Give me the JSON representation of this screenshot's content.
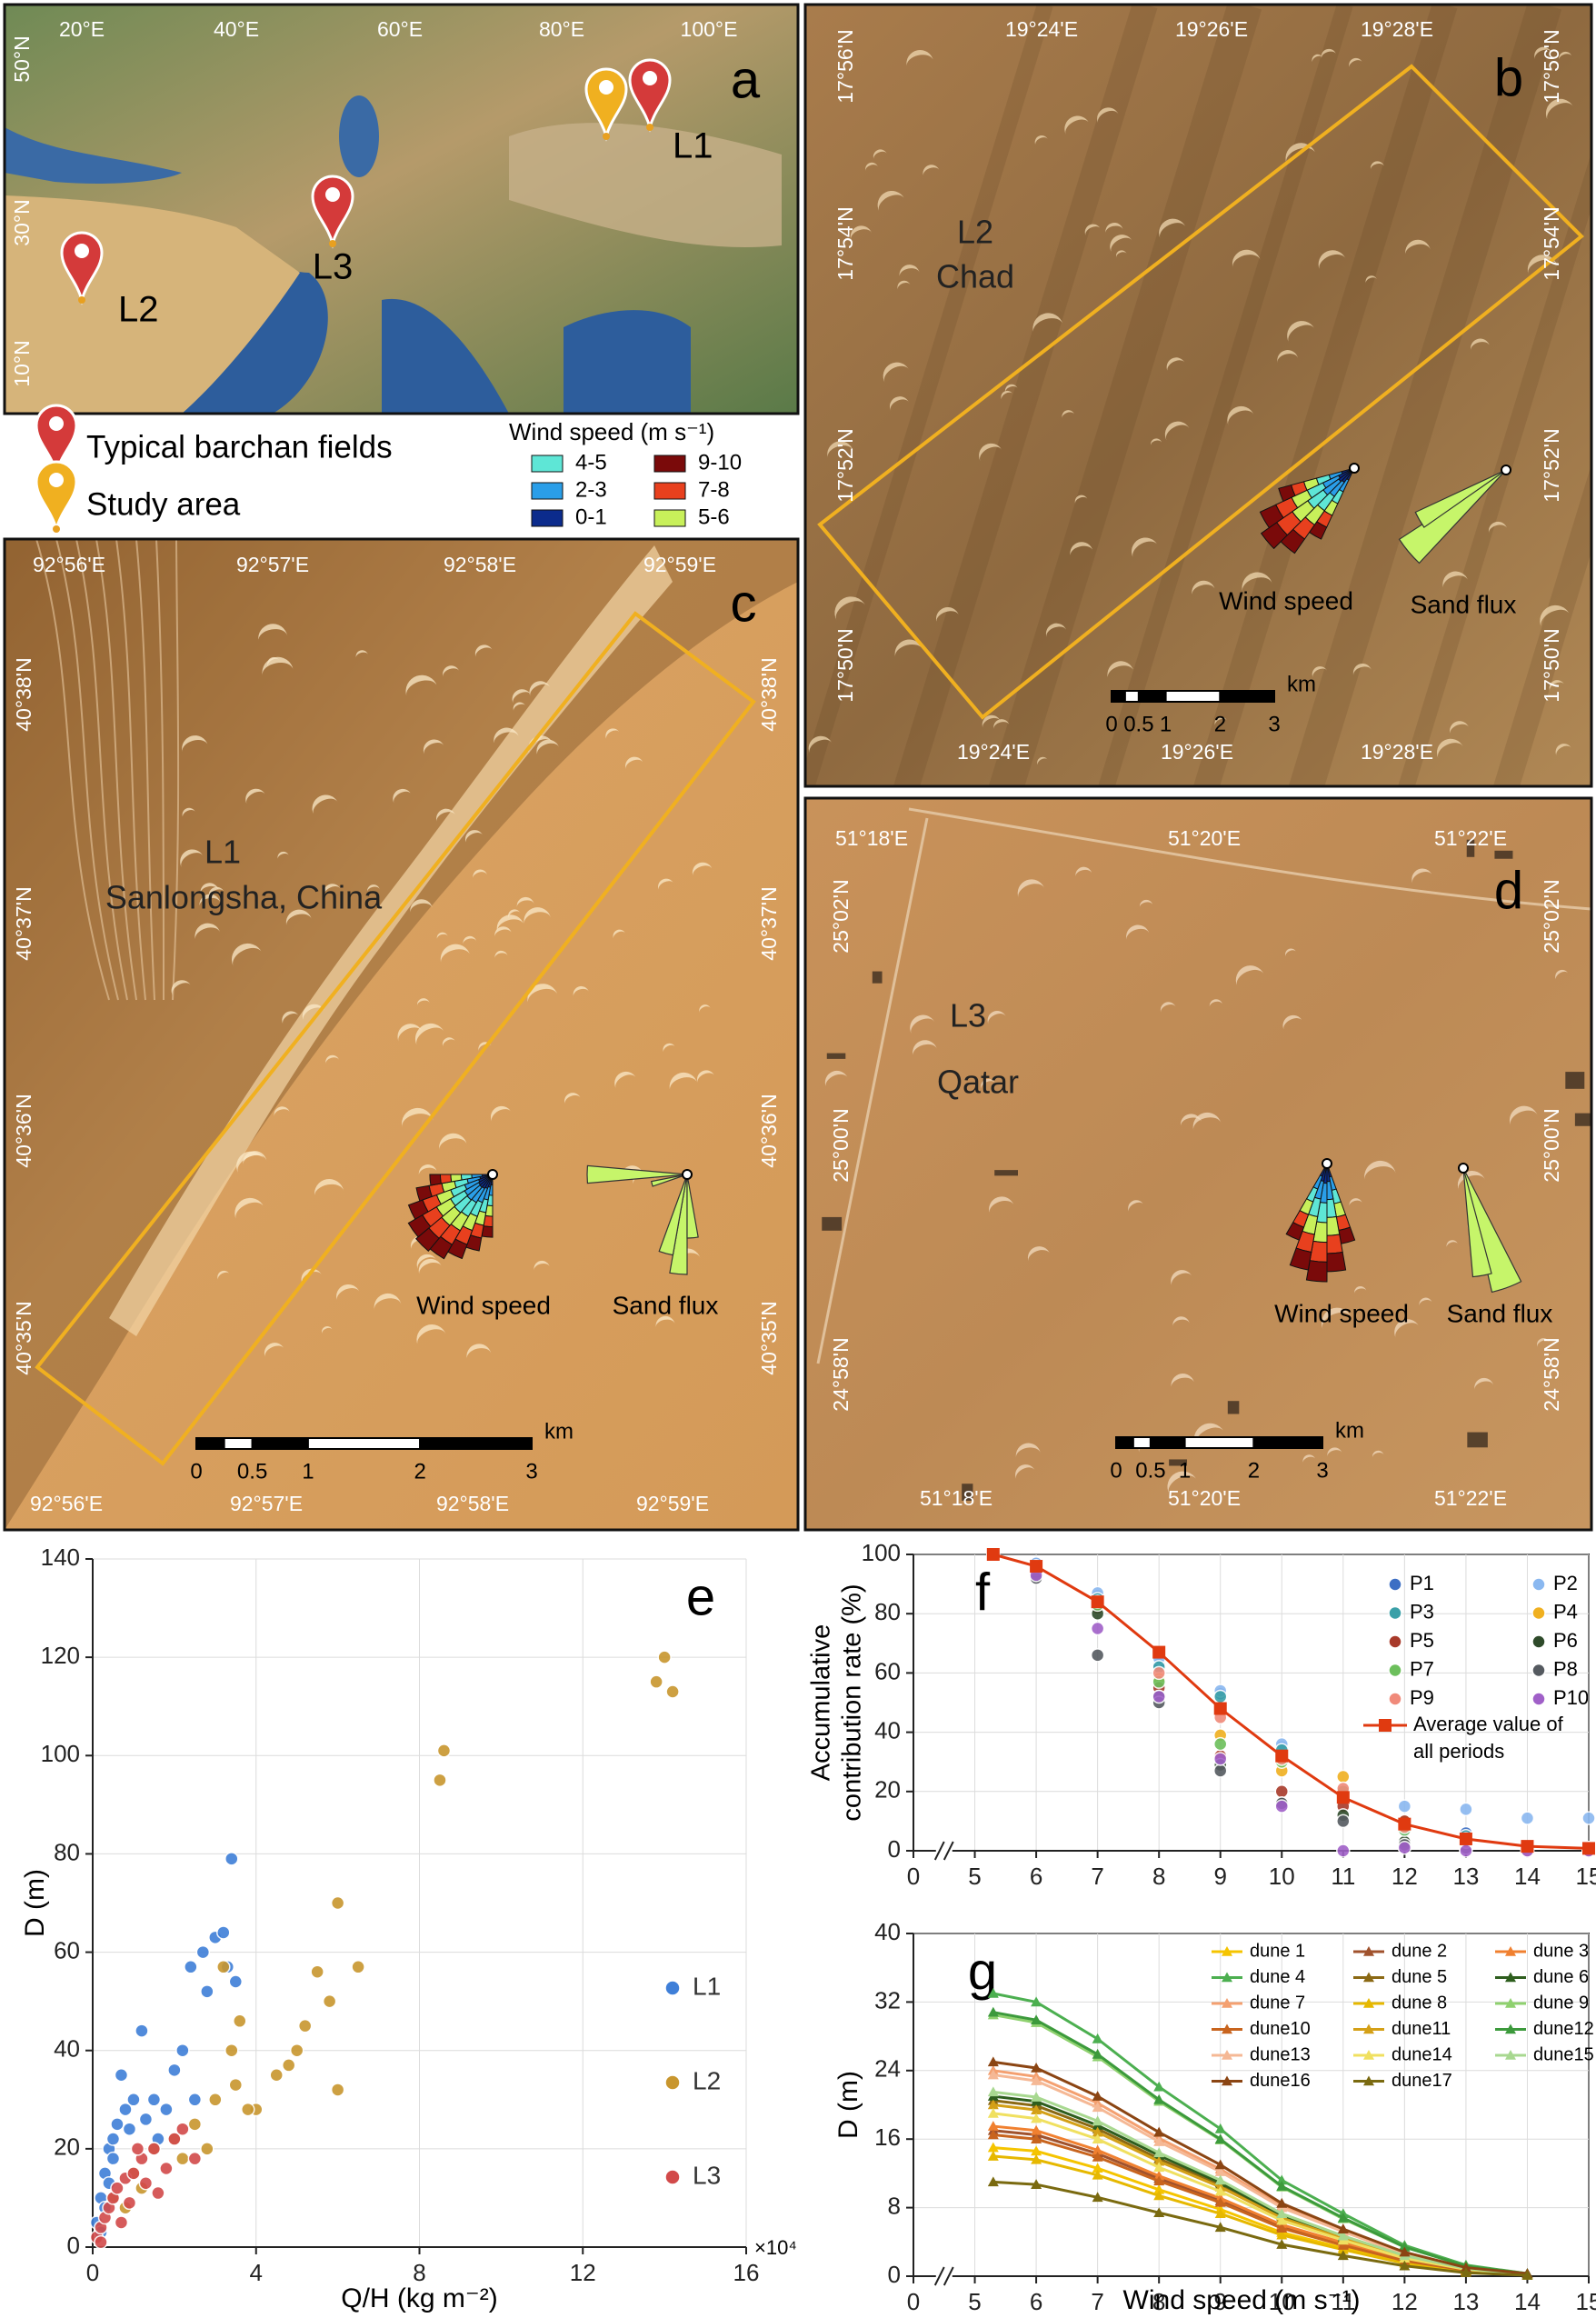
{
  "maps": {
    "a": {
      "letter": "a",
      "lon_ticks": [
        "20°E",
        "40°E",
        "60°E",
        "80°E",
        "100°E"
      ],
      "lat_ticks": [
        "50°N",
        "30°N",
        "10°N"
      ],
      "sites": [
        "L1",
        "L2",
        "L3"
      ]
    },
    "legend": {
      "items": [
        "Typical barchan fields",
        "Study area"
      ],
      "wind_title": "Wind speed (m s⁻¹)",
      "wind_classes": [
        {
          "label": "4-5",
          "color": "#5ee6d6"
        },
        {
          "label": "2-3",
          "color": "#2a9ee8"
        },
        {
          "label": "0-1",
          "color": "#0b2b8c"
        },
        {
          "label": "9-10",
          "color": "#7a0a0a"
        },
        {
          "label": "7-8",
          "color": "#e8401e"
        },
        {
          "label": "5-6",
          "color": "#c8f05a"
        }
      ]
    },
    "b": {
      "letter": "b",
      "lon_ticks": [
        "19°24'E",
        "19°26'E",
        "19°28'E"
      ],
      "lat_ticks": [
        "17°56'N",
        "17°54'N",
        "17°52'N",
        "17°50'N"
      ],
      "site": "L2",
      "place": "Chad",
      "scale_labels": [
        "0",
        "0.5",
        "1",
        "2",
        "3"
      ],
      "scale_unit": "km",
      "rose_labels": [
        "Wind speed",
        "Sand flux"
      ]
    },
    "c": {
      "letter": "c",
      "lon_ticks": [
        "92°56'E",
        "92°57'E",
        "92°58'E",
        "92°59'E"
      ],
      "lat_ticks": [
        "40°38'N",
        "40°37'N",
        "40°36'N",
        "40°35'N"
      ],
      "site": "L1",
      "place": "Sanlongsha, China",
      "scale_labels": [
        "0",
        "0.5",
        "1",
        "2",
        "3"
      ],
      "scale_unit": "km",
      "rose_labels": [
        "Wind speed",
        "Sand flux"
      ]
    },
    "d": {
      "letter": "d",
      "lon_ticks": [
        "51°18'E",
        "51°20'E",
        "51°22'E"
      ],
      "lat_ticks": [
        "25°02'N",
        "25°00'N",
        "24°58'N"
      ],
      "site": "L3",
      "place": "Qatar",
      "scale_labels": [
        "0",
        "0.5",
        "1",
        "2",
        "3"
      ],
      "scale_unit": "km",
      "rose_labels": [
        "Wind speed",
        "Sand flux"
      ]
    }
  },
  "chart_data": [
    {
      "type": "scatter",
      "panel": "e",
      "x_label": "Q/H (kg m⁻²)",
      "y_label": "D (m)",
      "x_multiplier": "×10⁴",
      "xlim": [
        0,
        16
      ],
      "xticks": [
        0,
        4,
        8,
        12,
        16
      ],
      "ylim": [
        0,
        140
      ],
      "yticks": [
        0,
        20,
        40,
        60,
        80,
        100,
        120,
        140
      ],
      "grid": true,
      "legend": "right",
      "series": [
        {
          "name": "L1",
          "color": "#3f7fd8",
          "x": [
            0.1,
            0.2,
            0.3,
            0.4,
            0.5,
            0.6,
            0.8,
            1.0,
            1.2,
            1.5,
            0.7,
            2.0,
            2.2,
            2.4,
            2.8,
            3.0,
            3.2,
            3.4,
            3.3,
            2.7,
            1.8,
            0.3,
            0.5,
            0.9,
            1.3,
            0.2,
            1.6,
            2.5,
            3.5,
            0.4
          ],
          "values": [
            5,
            10,
            15,
            20,
            22,
            25,
            28,
            30,
            44,
            30,
            35,
            36,
            40,
            57,
            52,
            63,
            64,
            79,
            57,
            60,
            28,
            8,
            18,
            24,
            26,
            3,
            22,
            30,
            54,
            13
          ]
        },
        {
          "name": "L2",
          "color": "#c8962e",
          "x": [
            0.5,
            1.0,
            1.5,
            2.0,
            2.5,
            3.0,
            3.4,
            3.6,
            3.2,
            4.0,
            5.0,
            5.5,
            5.8,
            6.0,
            6.5,
            6.0,
            4.5,
            3.8,
            8.5,
            8.6,
            13.8,
            14.0,
            14.2,
            2.2,
            1.2,
            0.8,
            2.8,
            4.8,
            5.2,
            3.5
          ],
          "values": [
            10,
            15,
            20,
            22,
            25,
            30,
            40,
            46,
            57,
            28,
            40,
            56,
            50,
            70,
            57,
            32,
            35,
            28,
            95,
            101,
            115,
            120,
            113,
            18,
            12,
            8,
            20,
            37,
            45,
            33
          ]
        },
        {
          "name": "L3",
          "color": "#d24a4a",
          "x": [
            0.1,
            0.2,
            0.3,
            0.4,
            0.5,
            0.6,
            0.8,
            1.0,
            1.2,
            1.5,
            1.8,
            2.0,
            2.2,
            2.5,
            0.7,
            0.9,
            1.3,
            1.6,
            0.2,
            1.1
          ],
          "values": [
            2,
            4,
            6,
            8,
            10,
            12,
            14,
            15,
            18,
            20,
            16,
            22,
            24,
            18,
            5,
            9,
            13,
            11,
            1,
            20
          ]
        }
      ]
    },
    {
      "type": "scatter",
      "panel": "f",
      "y_label": [
        "Accumulative",
        "contribution rate (%)"
      ],
      "x_break": true,
      "x": [
        5.3,
        6,
        7,
        8,
        9,
        10,
        11,
        12,
        13,
        14,
        15
      ],
      "xlim": [
        0,
        15
      ],
      "xticks": [
        0,
        5,
        6,
        7,
        8,
        9,
        10,
        11,
        12,
        13,
        14,
        15
      ],
      "ylim": [
        0,
        100
      ],
      "yticks": [
        0,
        20,
        40,
        60,
        80,
        100
      ],
      "grid": true,
      "legend": "top-right",
      "series": [
        {
          "name": "P1",
          "color": "#3d6fc4",
          "values": [
            100,
            97,
            86,
            63,
            53,
            35,
            19,
            7,
            6,
            1,
            1
          ]
        },
        {
          "name": "P2",
          "color": "#8ab8f0",
          "values": [
            100,
            97,
            87,
            65,
            54,
            36,
            20,
            15,
            14,
            11,
            11
          ]
        },
        {
          "name": "P3",
          "color": "#3aa0a8",
          "values": [
            100,
            96,
            85,
            62,
            52,
            34,
            18,
            9,
            5,
            1,
            1
          ]
        },
        {
          "name": "P4",
          "color": "#f0b020",
          "values": [
            100,
            96,
            84,
            58,
            39,
            27,
            25,
            10,
            3,
            1,
            0
          ]
        },
        {
          "name": "P5",
          "color": "#a83a2a",
          "values": [
            100,
            95,
            82,
            55,
            32,
            20,
            15,
            10,
            4,
            1,
            0
          ]
        },
        {
          "name": "P6",
          "color": "#2e4a2a",
          "values": [
            100,
            94,
            80,
            52,
            29,
            16,
            12,
            3,
            1,
            0,
            0
          ]
        },
        {
          "name": "P7",
          "color": "#6cbf5c",
          "values": [
            100,
            95,
            83,
            57,
            36,
            30,
            20,
            7,
            2,
            0,
            0
          ]
        },
        {
          "name": "P8",
          "color": "#555a60",
          "values": [
            100,
            92,
            66,
            50,
            27,
            16,
            10,
            2,
            1,
            0,
            0
          ]
        },
        {
          "name": "P9",
          "color": "#f08a7a",
          "values": [
            100,
            96,
            84,
            60,
            45,
            31,
            21,
            8,
            3,
            0,
            0
          ]
        },
        {
          "name": "P10",
          "color": "#a060c8",
          "values": [
            100,
            93,
            75,
            52,
            31,
            15,
            0,
            1,
            0,
            0,
            0
          ]
        },
        {
          "name": "Average value of all periods",
          "color": "#e03a10",
          "line": true,
          "values": [
            100,
            96,
            84,
            67,
            48,
            32,
            18,
            9,
            4,
            1.5,
            0.8
          ]
        }
      ]
    },
    {
      "type": "line",
      "panel": "g",
      "x_label": "Wind speed (m s⁻¹)",
      "y_label": "D (m)",
      "x_break": true,
      "x": [
        5.3,
        6,
        7,
        8,
        9,
        10,
        11,
        12,
        13,
        14
      ],
      "xlim": [
        0,
        15
      ],
      "xticks": [
        0,
        5,
        6,
        7,
        8,
        9,
        10,
        11,
        12,
        13,
        14,
        15
      ],
      "ylim": [
        0,
        40
      ],
      "yticks": [
        0,
        8,
        16,
        24,
        32,
        40
      ],
      "grid": true,
      "legend": "top-right",
      "series": [
        {
          "name": "dune 1",
          "color": "#f5c400",
          "values": [
            15,
            14.6,
            12.6,
            10.1,
            7.8,
            5.1,
            3.3,
            1.7,
            0.6,
            0.2
          ]
        },
        {
          "name": "dune 2",
          "color": "#a0522d",
          "values": [
            17,
            16.5,
            14.3,
            11.4,
            8.8,
            5.8,
            3.7,
            1.9,
            0.7,
            0.2
          ]
        },
        {
          "name": "dune 3",
          "color": "#f08030",
          "values": [
            17.5,
            17,
            14.7,
            11.7,
            9.1,
            6,
            3.9,
            1.9,
            0.7,
            0.2
          ]
        },
        {
          "name": "dune 4",
          "color": "#4caf50",
          "values": [
            33,
            32,
            27.7,
            22.1,
            17.2,
            11.2,
            7.3,
            3.6,
            1.3,
            0.3
          ]
        },
        {
          "name": "dune 5",
          "color": "#8b6914",
          "values": [
            20.5,
            19.9,
            17.2,
            13.7,
            10.7,
            7,
            4.5,
            2.3,
            0.8,
            0.2
          ]
        },
        {
          "name": "dune 6",
          "color": "#2e5e1e",
          "values": [
            21,
            20.4,
            17.6,
            14.1,
            10.9,
            7.1,
            4.6,
            2.3,
            0.8,
            0.2
          ]
        },
        {
          "name": "dune 7",
          "color": "#f4a070",
          "values": [
            24,
            23.3,
            20.2,
            16.1,
            12.5,
            8.2,
            5.3,
            2.6,
            1,
            0.2
          ]
        },
        {
          "name": "dune 8",
          "color": "#e6b800",
          "values": [
            14,
            13.6,
            11.8,
            9.4,
            7.3,
            4.8,
            3.1,
            1.5,
            0.6,
            0.1
          ]
        },
        {
          "name": "dune 9",
          "color": "#8fd16f",
          "values": [
            30.5,
            29.6,
            25.6,
            20.4,
            15.9,
            10.4,
            6.7,
            3.4,
            1.2,
            0.3
          ]
        },
        {
          "name": "dune10",
          "color": "#c8641e",
          "values": [
            16.5,
            16,
            13.9,
            11.1,
            8.6,
            5.6,
            3.6,
            1.8,
            0.7,
            0.2
          ]
        },
        {
          "name": "dune11",
          "color": "#d4a017",
          "values": [
            20,
            19.4,
            16.8,
            13.4,
            10.4,
            6.8,
            4.4,
            2.2,
            0.8,
            0.2
          ]
        },
        {
          "name": "dune12",
          "color": "#3c9a3c",
          "values": [
            30.8,
            29.9,
            25.9,
            20.6,
            16,
            10.5,
            6.8,
            3.4,
            1.2,
            0.3
          ]
        },
        {
          "name": "dune13",
          "color": "#f5b895",
          "values": [
            23.5,
            22.8,
            19.7,
            15.7,
            12.2,
            8,
            5.2,
            2.6,
            0.9,
            0.2
          ]
        },
        {
          "name": "dune14",
          "color": "#f0e060",
          "values": [
            19,
            18.4,
            16,
            12.7,
            9.9,
            6.5,
            4.2,
            2.1,
            0.8,
            0.2
          ]
        },
        {
          "name": "dune15",
          "color": "#a8d890",
          "values": [
            21.5,
            20.9,
            18.1,
            14.4,
            11.2,
            7.3,
            4.7,
            2.4,
            0.9,
            0.2
          ]
        },
        {
          "name": "dune16",
          "color": "#8b4513",
          "values": [
            25,
            24.3,
            21,
            16.8,
            13,
            8.5,
            5.5,
            2.8,
            1,
            0.3
          ]
        },
        {
          "name": "dune17",
          "color": "#7a6a10",
          "values": [
            11,
            10.7,
            9.2,
            7.4,
            5.7,
            3.7,
            2.4,
            1.2,
            0.4,
            0.1
          ]
        }
      ]
    }
  ]
}
